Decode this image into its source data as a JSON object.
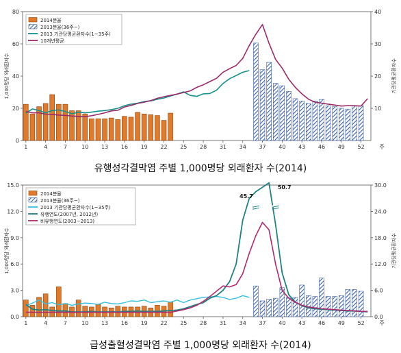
{
  "colors": {
    "bar2014": "#e07a2c",
    "bar2014_stroke": "#8a3e08",
    "hatch": "#3a5fa8",
    "agency": "#14928c",
    "avg10": "#9a2a6a",
    "agency_cyan": "#33bfe0",
    "epi": "#1f8080",
    "nonepi": "#b0286e"
  },
  "chart_data": [
    {
      "type": "bar",
      "caption": "유행성각결막염  주별  1,000명당  외래환자  수(2014)",
      "ylabel_left": "1,000명당 외래환자수",
      "ylabel_right": "기관당평균환자수",
      "ylim": [
        0,
        80
      ],
      "yticks": [
        0,
        20,
        40,
        60,
        80
      ],
      "ylim_right": [
        0,
        40
      ],
      "yticks_right": [
        10,
        20,
        30,
        40
      ],
      "xticks": [
        "1",
        "4",
        "7",
        "10",
        "13",
        "16",
        "19",
        "22",
        "25",
        "28",
        "31",
        "34",
        "37",
        "40",
        "43",
        "46",
        "49",
        "52"
      ],
      "xunit": "주",
      "series": [
        {
          "name": "2014분율",
          "kind": "bar",
          "start_week": 1,
          "values": [
            22.5,
            16.5,
            21,
            23,
            28.5,
            22.5,
            22.5,
            18.5,
            18.5,
            16.5,
            13.5,
            13.5,
            13.5,
            14,
            13,
            15,
            14.5,
            17.5,
            16.5,
            16,
            15.5,
            12.5,
            17
          ]
        },
        {
          "name": "2013분율(36주~)",
          "kind": "hatch",
          "start_week": 36,
          "values": [
            60.5,
            44,
            48.5,
            35.5,
            34,
            30.5,
            26,
            24.5,
            23,
            24.5,
            25.5,
            21.5,
            21,
            20,
            19.5,
            21.5,
            21.5
          ]
        },
        {
          "name": "2013 기관당평균환자수(1~35주)",
          "kind": "line",
          "axis": "right",
          "start_week": 1,
          "values": [
            8.5,
            9.8,
            9.3,
            8.6,
            9.3,
            9.5,
            9.0,
            8.3,
            8.8,
            8.6,
            8.8,
            9.1,
            9.3,
            9.6,
            10,
            10.8,
            11.3,
            11.6,
            12.1,
            12.3,
            12.8,
            13.2,
            13.8,
            14.4,
            15.1,
            14.0,
            13.7,
            14.5,
            14.6,
            15.6,
            17.7,
            19.2,
            20.2,
            21.2,
            21.7
          ]
        },
        {
          "name": "10개년평균",
          "kind": "line",
          "axis": "right",
          "start_week": 1,
          "values": [
            9,
            8.6,
            8.6,
            8.2,
            8.1,
            7.9,
            7.8,
            7.6,
            7.5,
            7.4,
            7.7,
            8.1,
            8.6,
            9.2,
            9.4,
            10.4,
            10.9,
            11.5,
            11.9,
            12.4,
            13.1,
            13.6,
            14.0,
            14.4,
            14.9,
            15.4,
            16.5,
            17.3,
            18.3,
            19.3,
            21.2,
            22.3,
            23.3,
            25.5,
            29.5,
            33.0,
            36.0,
            30.2,
            25.2,
            22.5,
            19.0,
            16.5,
            14.5,
            12.8,
            11.9,
            11.6,
            11.3,
            11.0,
            10.7,
            10.8,
            10.8,
            10.7,
            13.0
          ]
        }
      ]
    },
    {
      "type": "bar",
      "caption": "급성출혈성결막염  주별  1,000명당  외래환자  수(2014)",
      "ylabel_left": "1,000명당 외래환자수",
      "ylabel_right": "기관당평균환자수",
      "ylim": [
        0,
        15
      ],
      "yticks": [
        "0.0",
        "3.0",
        "6.0",
        "9.0",
        "12.0",
        "15.0"
      ],
      "ylim_right": [
        0,
        30
      ],
      "yticks_right": [
        "0.0",
        "6.0",
        "12.0",
        "18.0",
        "24.0",
        "30.0"
      ],
      "xticks": [
        "1",
        "4",
        "7",
        "10",
        "13",
        "16",
        "19",
        "22",
        "25",
        "28",
        "31",
        "34",
        "37",
        "40",
        "43",
        "46",
        "49",
        "52"
      ],
      "xunit": "주",
      "annotations": [
        "45.7",
        "50.7"
      ],
      "series": [
        {
          "name": "2014분율",
          "kind": "bar",
          "start_week": 1,
          "values": [
            1.9,
            1.3,
            2.2,
            2.6,
            1.1,
            3.4,
            1.5,
            1.1,
            1.9,
            1.2,
            1.1,
            1.4,
            1.1,
            1.0,
            1.2,
            1.1,
            1.1,
            1.1,
            1.2,
            1.0,
            1.3,
            1.2,
            1.7
          ]
        },
        {
          "name": "2013분율(36주~)",
          "kind": "hatch",
          "start_week": 36,
          "values": [
            3.5,
            1.8,
            2.0,
            2.1,
            3.3,
            2.2,
            2.2,
            3.6,
            2.4,
            2.3,
            4.4,
            2.3,
            2.3,
            2.4,
            3.1,
            3.1,
            2.9
          ]
        },
        {
          "name": "2013 기관당평균환자수(1~35주)",
          "kind": "line",
          "axis": "right",
          "start_week": 1,
          "values": [
            2.5,
            3.1,
            3.8,
            2.9,
            3.2,
            2.7,
            3.0,
            2.6,
            2.9,
            3.1,
            3.0,
            2.8,
            3.3,
            3.0,
            2.9,
            3.2,
            3.6,
            3.5,
            3.8,
            3.2,
            3.4,
            3.6,
            3.3,
            3.8,
            3.2,
            3.8,
            4.1,
            4.4,
            4.5,
            4.6,
            4.4,
            3.9,
            4.2,
            4.8,
            4.4
          ]
        },
        {
          "name": "유행연도(2007년, 2012년)",
          "kind": "line",
          "axis": "right",
          "start_week": 1,
          "values": [
            2.8,
            1.7,
            1.5,
            1.6,
            1.4,
            1.3,
            1.3,
            1.1,
            1.1,
            1.1,
            1.2,
            1.1,
            1.1,
            1.1,
            1.1,
            1.2,
            1.2,
            1.3,
            1.2,
            1.2,
            1.2,
            1.3,
            1.4,
            1.5,
            1.8,
            2.3,
            2.8,
            3.2,
            4.2,
            4.8,
            6.0,
            8.0,
            12.0,
            22.0,
            27.0,
            28.5,
            29.5,
            30.5,
            21.0,
            10.0,
            5.0,
            3.3,
            2.5,
            2.0,
            1.8,
            1.7,
            1.6,
            1.5,
            1.4,
            1.3,
            1.3,
            1.2,
            1.1
          ]
        },
        {
          "name": "비유행연도(2003~2013)",
          "kind": "line",
          "axis": "right",
          "start_week": 1,
          "values": [
            1.0,
            1.0,
            1.0,
            1.0,
            1.0,
            1.0,
            1.0,
            1.0,
            1.0,
            1.0,
            1.0,
            1.0,
            1.0,
            1.0,
            1.0,
            1.0,
            1.0,
            1.0,
            1.0,
            1.0,
            1.0,
            1.0,
            1.0,
            1.3,
            1.6,
            2.0,
            2.6,
            3.5,
            4.6,
            5.8,
            7.0,
            6.8,
            7.3,
            9.8,
            14.5,
            18.5,
            21.5,
            19.8,
            12.0,
            6.0,
            4.2,
            3.3,
            2.6,
            2.2,
            2.0,
            1.8,
            1.7,
            1.6,
            1.5,
            1.4,
            1.3,
            1.2,
            1.2
          ]
        }
      ]
    }
  ]
}
